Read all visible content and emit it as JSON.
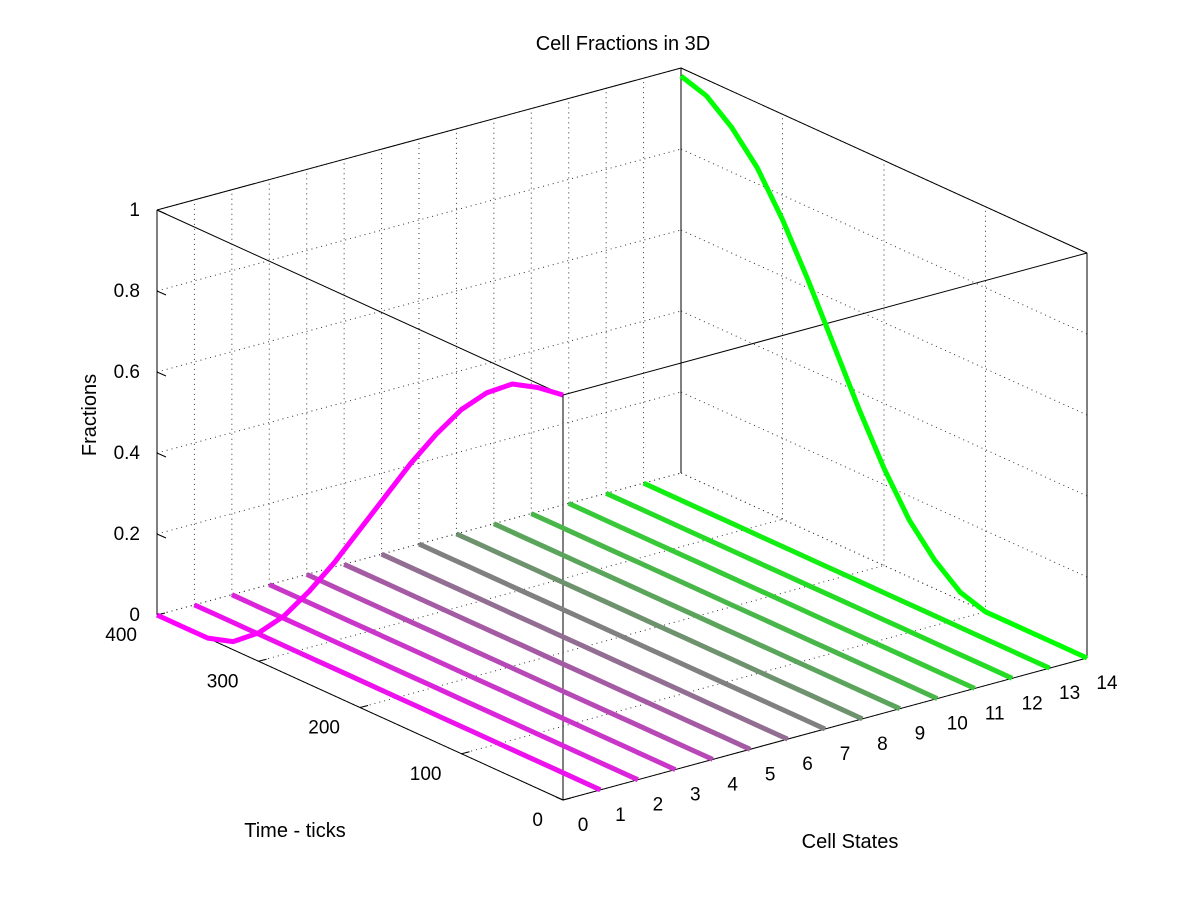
{
  "chart_data": {
    "type": "line3d",
    "title": "Cell Fractions in 3D",
    "xlabel": "Cell States",
    "ylabel": "Time - ticks",
    "zlabel": "Fractions",
    "x_ticks": [
      "0",
      "1",
      "2",
      "3",
      "4",
      "5",
      "6",
      "7",
      "8",
      "9",
      "10",
      "11",
      "12",
      "13",
      "14"
    ],
    "y_ticks": [
      "0",
      "100",
      "200",
      "300",
      "400"
    ],
    "z_ticks": [
      "0",
      "0.2",
      "0.4",
      "0.6",
      "0.8",
      "1"
    ],
    "xlim": [
      0,
      14
    ],
    "ylim": [
      0,
      400
    ],
    "zlim": [
      0,
      1
    ],
    "grid": true,
    "color_start": "#ff00ff",
    "color_end": "#00ff00",
    "time": [
      0,
      25,
      50,
      75,
      100,
      125,
      150,
      175,
      200,
      225,
      250,
      275,
      300,
      325,
      350,
      375,
      400
    ],
    "series": [
      {
        "state": 0,
        "values": [
          1.0,
          0.99,
          0.97,
          0.92,
          0.85,
          0.76,
          0.66,
          0.55,
          0.44,
          0.33,
          0.23,
          0.14,
          0.07,
          0.02,
          0.0,
          0.0,
          0.0
        ]
      },
      {
        "state": 1,
        "values": [
          0,
          0,
          0,
          0,
          0,
          0,
          0,
          0,
          0,
          0,
          0,
          0,
          0,
          0,
          0,
          0,
          0
        ]
      },
      {
        "state": 2,
        "values": [
          0,
          0,
          0,
          0,
          0,
          0,
          0,
          0,
          0,
          0,
          0,
          0,
          0,
          0,
          0,
          0,
          0
        ]
      },
      {
        "state": 3,
        "values": [
          0,
          0,
          0,
          0,
          0,
          0,
          0,
          0,
          0,
          0,
          0,
          0,
          0,
          0,
          0,
          0,
          0
        ]
      },
      {
        "state": 4,
        "values": [
          0,
          0,
          0,
          0,
          0,
          0,
          0,
          0,
          0,
          0,
          0,
          0,
          0,
          0,
          0,
          0,
          0
        ]
      },
      {
        "state": 5,
        "values": [
          0,
          0,
          0,
          0,
          0,
          0,
          0,
          0,
          0,
          0,
          0,
          0,
          0,
          0,
          0,
          0,
          0
        ]
      },
      {
        "state": 6,
        "values": [
          0,
          0,
          0,
          0,
          0,
          0,
          0,
          0,
          0,
          0,
          0,
          0,
          0,
          0,
          0,
          0,
          0
        ]
      },
      {
        "state": 7,
        "values": [
          0,
          0,
          0,
          0,
          0,
          0,
          0,
          0,
          0,
          0,
          0,
          0,
          0,
          0,
          0,
          0,
          0
        ]
      },
      {
        "state": 8,
        "values": [
          0,
          0,
          0,
          0,
          0,
          0,
          0,
          0,
          0,
          0,
          0,
          0,
          0,
          0,
          0,
          0,
          0
        ]
      },
      {
        "state": 9,
        "values": [
          0,
          0,
          0,
          0,
          0,
          0,
          0,
          0,
          0,
          0,
          0,
          0,
          0,
          0,
          0,
          0,
          0
        ]
      },
      {
        "state": 10,
        "values": [
          0,
          0,
          0,
          0,
          0,
          0,
          0,
          0,
          0,
          0,
          0,
          0,
          0,
          0,
          0,
          0,
          0
        ]
      },
      {
        "state": 11,
        "values": [
          0,
          0,
          0,
          0,
          0,
          0,
          0,
          0,
          0,
          0,
          0,
          0,
          0,
          0,
          0,
          0,
          0
        ]
      },
      {
        "state": 12,
        "values": [
          0,
          0,
          0,
          0,
          0,
          0,
          0,
          0,
          0,
          0,
          0,
          0,
          0,
          0,
          0,
          0,
          0
        ]
      },
      {
        "state": 13,
        "values": [
          0,
          0,
          0,
          0,
          0,
          0,
          0,
          0,
          0,
          0,
          0,
          0,
          0,
          0,
          0,
          0,
          0
        ]
      },
      {
        "state": 14,
        "values": [
          0.0,
          0.0,
          0.0,
          0.0,
          0.0,
          0.02,
          0.07,
          0.14,
          0.24,
          0.36,
          0.49,
          0.62,
          0.74,
          0.84,
          0.91,
          0.96,
          0.98
        ]
      }
    ]
  }
}
